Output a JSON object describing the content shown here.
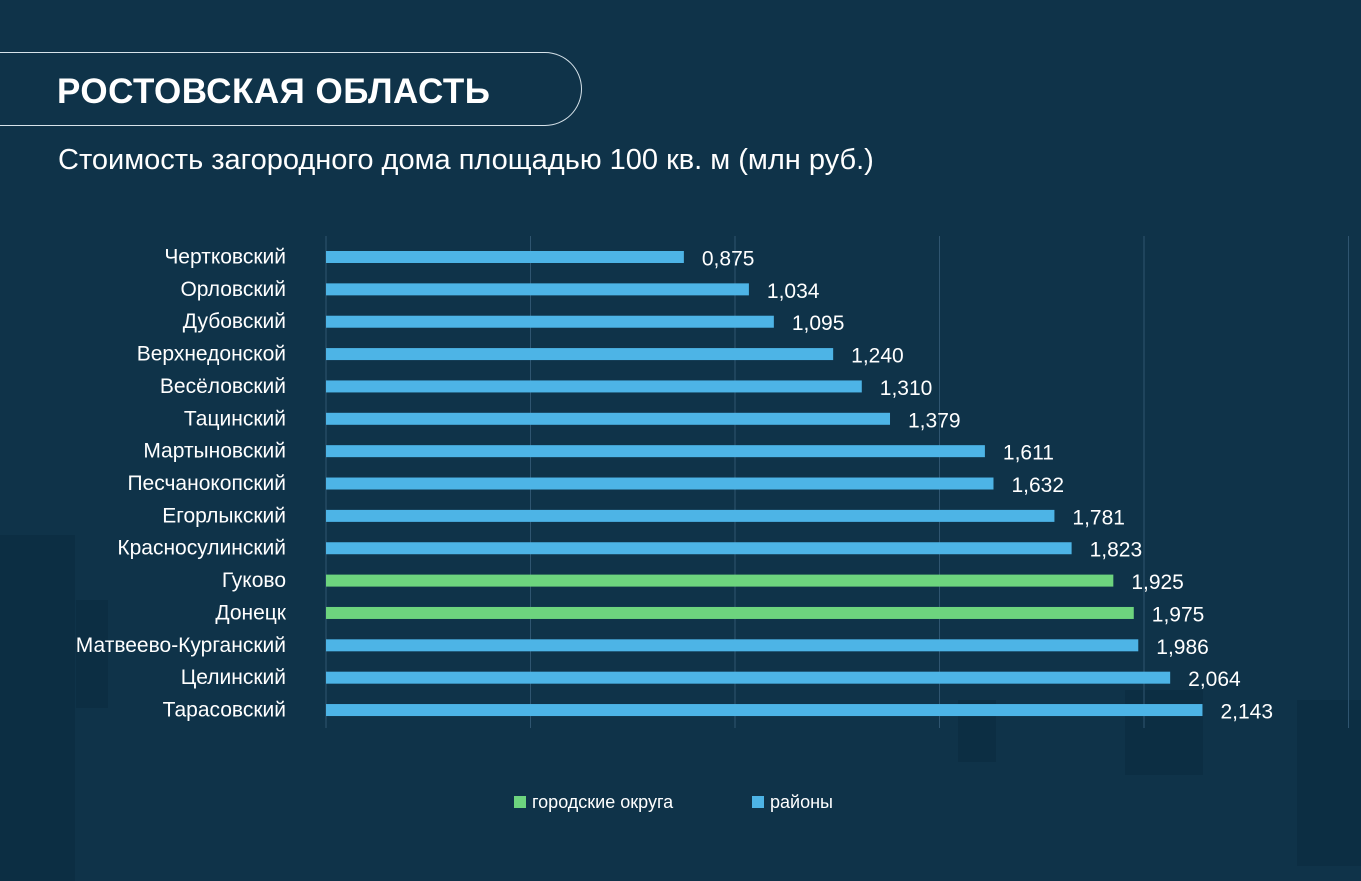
{
  "header": {
    "title": "РОСТОВСКАЯ ОБЛАСТЬ",
    "subtitle": "Стоимость загородного дома площадью 100 кв. м (млн руб.)"
  },
  "colors": {
    "background": "#0f3349",
    "district": "#4db4e6",
    "city": "#6dd47e",
    "gridline": "#2f5570",
    "text": "#ffffff"
  },
  "legend": {
    "items": [
      {
        "label": "городские округа",
        "color": "#6dd47e"
      },
      {
        "label": "районы",
        "color": "#4db4e6"
      }
    ]
  },
  "chart_data": {
    "type": "bar",
    "orientation": "horizontal",
    "title": "Стоимость загородного дома площадью 100 кв. м (млн руб.)",
    "categories": [
      "Чертковский",
      "Орловский",
      "Дубовский",
      "Верхнедонской",
      "Весёловский",
      "Тацинский",
      "Мартыновский",
      "Песчанокопский",
      "Егорлыкский",
      "Красносулинский",
      "Гуково",
      "Донецк",
      "Матвеево-Курганский",
      "Целинский",
      "Тарасовский"
    ],
    "values": [
      0.875,
      1.034,
      1.095,
      1.24,
      1.31,
      1.379,
      1.611,
      1.632,
      1.781,
      1.823,
      1.925,
      1.975,
      1.986,
      2.064,
      2.143
    ],
    "value_labels": [
      "0,875",
      "1,034",
      "1,095",
      "1,240",
      "1,310",
      "1,379",
      "1,611",
      "1,632",
      "1,781",
      "1,823",
      "1,925",
      "1,975",
      "1,986",
      "2,064",
      "2,143"
    ],
    "groups": [
      "районы",
      "районы",
      "районы",
      "районы",
      "районы",
      "районы",
      "районы",
      "районы",
      "районы",
      "районы",
      "городские округа",
      "городские округа",
      "районы",
      "районы",
      "районы"
    ],
    "xlim": [
      0,
      2.5
    ],
    "grid": true,
    "legend_position": "bottom"
  }
}
